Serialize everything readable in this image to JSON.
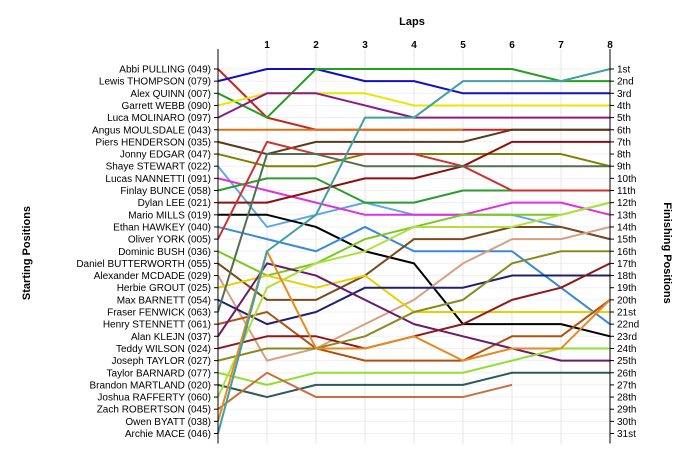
{
  "chart_data": {
    "type": "line",
    "title": "",
    "xlabel": "Laps",
    "ylabel_left": "Starting Positions",
    "ylabel_right": "Finishing Positions",
    "x_ticks": [
      "1",
      "2",
      "3",
      "4",
      "5",
      "6",
      "7",
      "8"
    ],
    "finishing_labels": [
      "1st",
      "2nd",
      "3rd",
      "4th",
      "5th",
      "6th",
      "7th",
      "8th",
      "9th",
      "10th",
      "11th",
      "12th",
      "13th",
      "14th",
      "15th",
      "16th",
      "17th",
      "18th",
      "19th",
      "20th",
      "21st",
      "22nd",
      "23rd",
      "24th",
      "25th",
      "26th",
      "27th",
      "28th",
      "29th",
      "30th",
      "31st"
    ],
    "grid": true,
    "series": [
      {
        "name": "Abbi PULLING (049)",
        "color": "#cc2222",
        "positions": [
          1,
          5,
          6,
          6,
          6,
          6,
          6,
          6,
          6
        ]
      },
      {
        "name": "Lewis THOMPSON (079)",
        "color": "#1010c0",
        "positions": [
          2,
          1,
          1,
          2,
          2,
          3,
          3,
          3,
          3
        ]
      },
      {
        "name": "Alex QUINN (007)",
        "color": "#22a022",
        "positions": [
          3,
          5,
          1,
          1,
          1,
          1,
          1,
          2,
          2
        ]
      },
      {
        "name": "Garrett WEBB (090)",
        "color": "#e6e600",
        "positions": [
          4,
          3,
          3,
          3,
          4,
          4,
          4,
          4,
          4
        ]
      },
      {
        "name": "Luca MOLINARO (097)",
        "color": "#8a1a8a",
        "positions": [
          5,
          3,
          3,
          4,
          5,
          5,
          5,
          5,
          5
        ]
      },
      {
        "name": "Angus MOULSDALE (043)",
        "color": "#e07010",
        "positions": [
          6,
          6,
          6,
          6,
          6,
          6
        ]
      },
      {
        "name": "Piers HENDERSON (035)",
        "color": "#5a3a1a",
        "positions": [
          7,
          8,
          7,
          7,
          7,
          7,
          6,
          6,
          6
        ]
      },
      {
        "name": "Jonny EDGAR (047)",
        "color": "#808000",
        "positions": [
          8,
          9,
          9,
          8,
          8,
          8,
          8,
          8,
          9
        ]
      },
      {
        "name": "Shaye STEWART (022)",
        "color": "#5fa8e8",
        "positions": [
          9,
          14,
          13,
          12,
          13,
          13,
          13,
          14,
          15
        ]
      },
      {
        "name": "Lucas NANNETTI (091)",
        "color": "#e030e0",
        "positions": [
          10,
          11,
          12,
          13,
          13,
          13,
          12,
          12,
          13
        ]
      },
      {
        "name": "Finlay BUNCE (058)",
        "color": "#2e9b2e",
        "positions": [
          11,
          10,
          10,
          12,
          12,
          11,
          11,
          11,
          11
        ]
      },
      {
        "name": "Dylan LEE (021)",
        "color": "#8b1010",
        "positions": [
          12,
          12,
          11,
          10,
          10,
          9,
          7,
          7,
          7
        ]
      },
      {
        "name": "Mario MILLS (019)",
        "color": "#000000",
        "positions": [
          13,
          13,
          14,
          16,
          17,
          22,
          22,
          22,
          23
        ]
      },
      {
        "name": "Ethan HAWKEY (040)",
        "color": "#3a88d8",
        "positions": [
          14,
          15,
          16,
          14,
          16,
          16,
          16,
          19,
          22
        ]
      },
      {
        "name": "Oliver YORK (005)",
        "color": "#cc3333",
        "positions": [
          15,
          7,
          8,
          8,
          8,
          9,
          11,
          11,
          11
        ]
      },
      {
        "name": "Dominic BUSH (036)",
        "color": "#7cc820",
        "positions": [
          16,
          18,
          17,
          15,
          14,
          13,
          13,
          13,
          12
        ]
      },
      {
        "name": "Daniel BUTTERWORTH (055)",
        "color": "#7a4a1a",
        "positions": [
          17,
          20,
          20,
          18,
          15,
          15,
          14,
          14,
          15
        ]
      },
      {
        "name": "Alexander MCDADE (029)",
        "color": "#d8a080",
        "positions": [
          18,
          25,
          24,
          22,
          20,
          17,
          15,
          15,
          14
        ]
      },
      {
        "name": "Herbie GROUT (025)",
        "color": "#e8d000",
        "positions": [
          19,
          18,
          19,
          18,
          21,
          21,
          21,
          21,
          21
        ]
      },
      {
        "name": "Max BARNETT (054)",
        "color": "#202070",
        "positions": [
          20,
          22,
          21,
          19,
          19,
          19,
          18,
          18,
          18
        ]
      },
      {
        "name": "Fraser FENWICK (063)",
        "color": "#507050",
        "positions": [
          21,
          8,
          8,
          9,
          9,
          9,
          9,
          9,
          9
        ]
      },
      {
        "name": "Henry STENNETT (061)",
        "color": "#b05010",
        "positions": [
          22,
          21,
          24,
          25,
          25,
          25,
          23,
          23,
          20
        ]
      },
      {
        "name": "Alan KLEJN (037)",
        "color": "#6a1a6a",
        "positions": [
          23,
          17,
          18,
          20,
          22,
          23,
          24,
          25,
          25
        ]
      },
      {
        "name": "Teddy WILSON (024)",
        "color": "#901818",
        "positions": [
          24,
          23,
          23,
          24,
          23,
          22,
          20,
          19,
          17
        ]
      },
      {
        "name": "Joseph TAYLOR (027)",
        "color": "#8a8a20",
        "positions": [
          25,
          24,
          24,
          23,
          21,
          20,
          17,
          16,
          16
        ]
      },
      {
        "name": "Taylor BARNARD (077)",
        "color": "#90e030",
        "positions": [
          26,
          27,
          26,
          26,
          26,
          26,
          25,
          24,
          24
        ]
      },
      {
        "name": "Brandon MARTLAND (020)",
        "color": "#2a5a5a",
        "positions": [
          27,
          28,
          27,
          27,
          27,
          27,
          26,
          26,
          26
        ]
      },
      {
        "name": "Joshua RAFFERTY (060)",
        "color": "#b0e040",
        "positions": [
          28,
          19,
          17,
          16,
          14,
          14,
          14,
          13,
          12
        ]
      },
      {
        "name": "Zach ROBERTSON (045)",
        "color": "#c87040",
        "positions": [
          29,
          26,
          28,
          28,
          28,
          28,
          27
        ]
      },
      {
        "name": "Owen BYATT (038)",
        "color": "#e88a20",
        "positions": [
          30,
          16,
          24,
          24,
          23,
          25,
          24,
          24,
          20
        ]
      },
      {
        "name": "Archie MACE (046)",
        "color": "#40a0a0",
        "positions": [
          31,
          16,
          13,
          5,
          5,
          2,
          2,
          2,
          1
        ]
      }
    ]
  }
}
